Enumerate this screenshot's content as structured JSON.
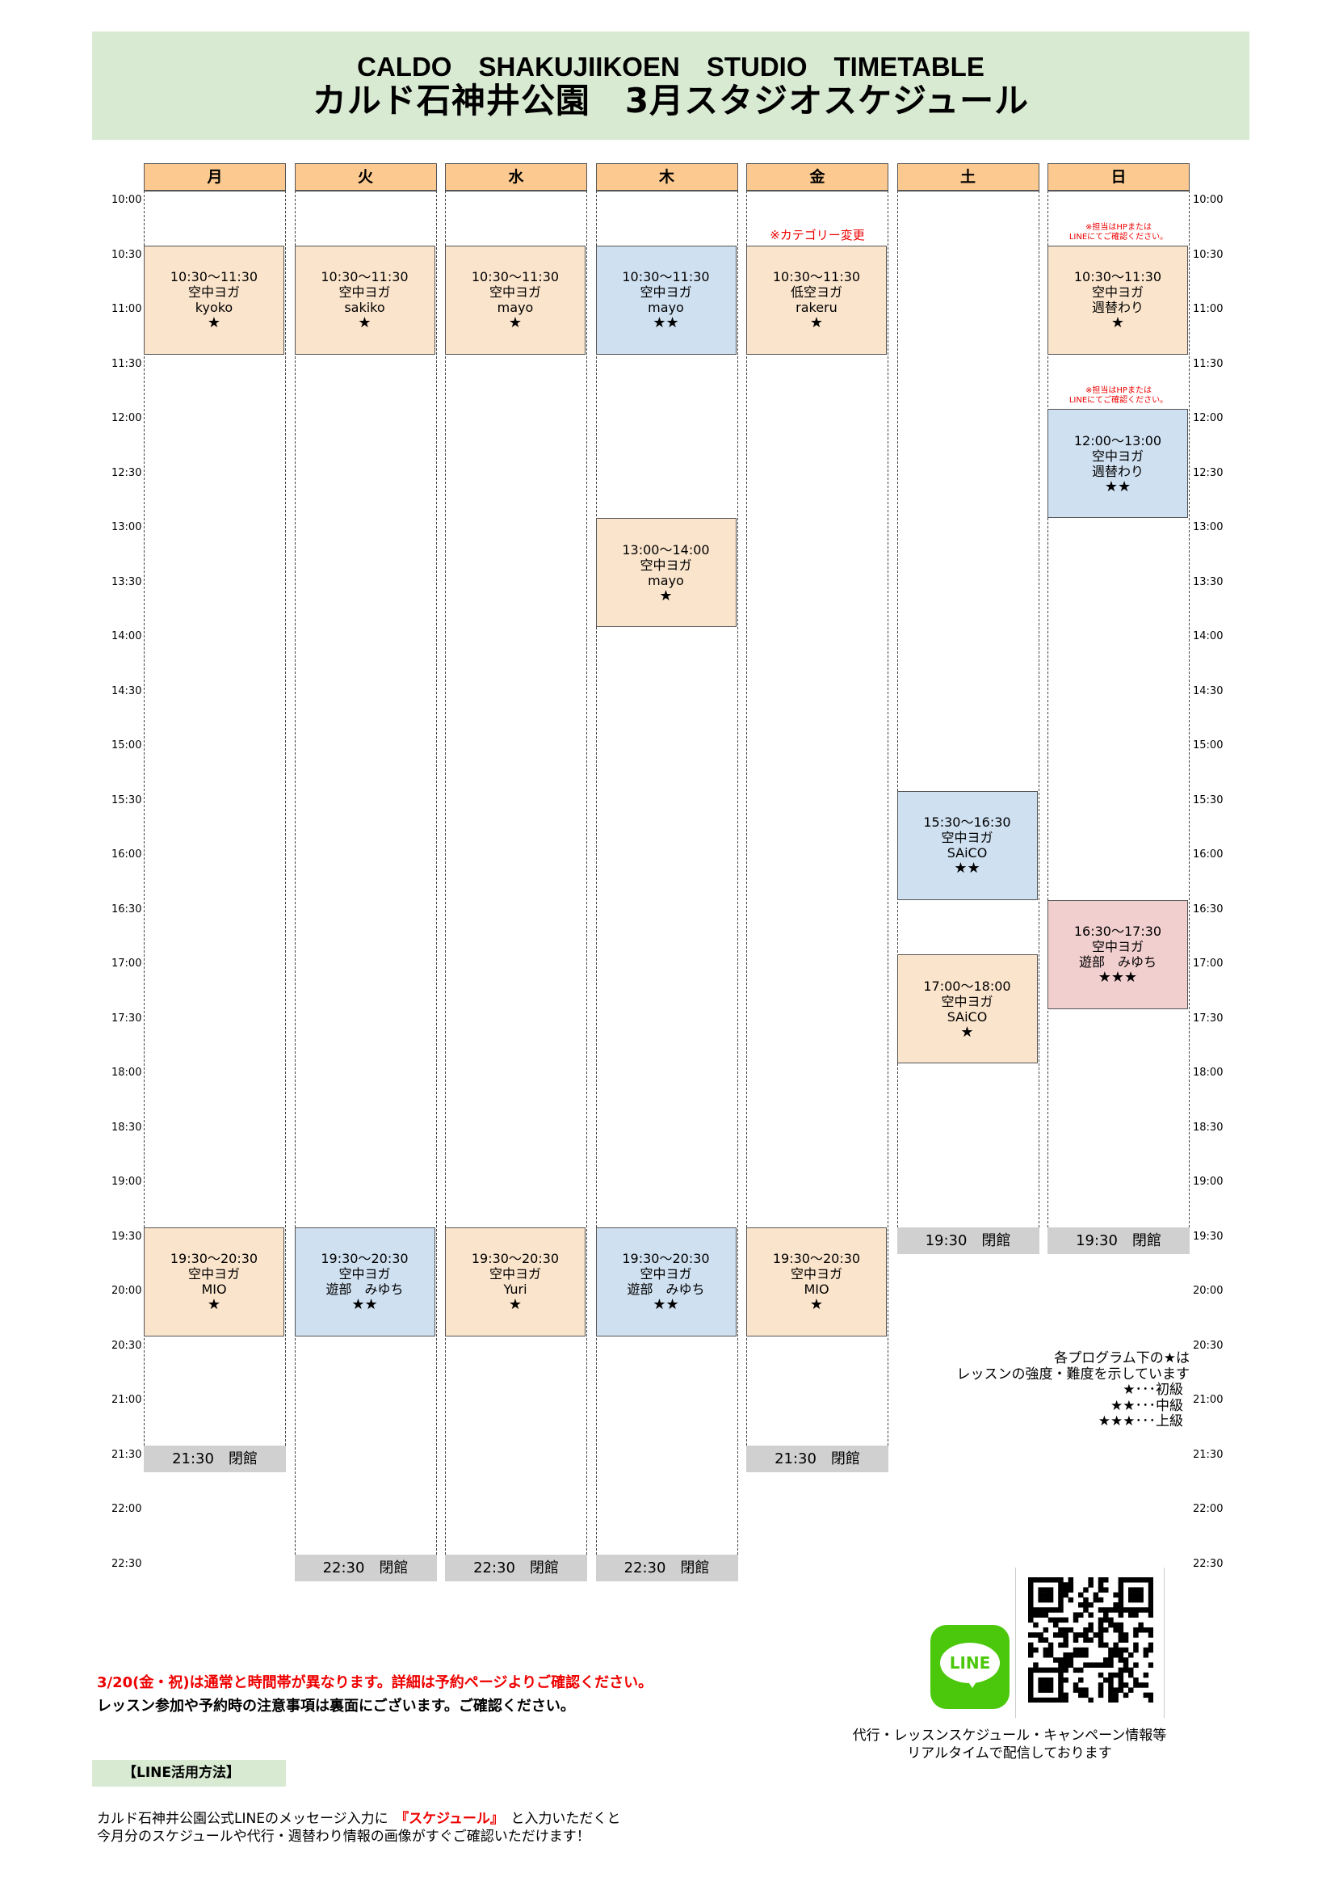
{
  "header": {
    "title_en": "CALDO　SHAKUJIIKOEN　STUDIO　TIMETABLE",
    "title_jp": "カルド石神井公園　3月スタジオスケジュール"
  },
  "days": [
    "月",
    "火",
    "水",
    "木",
    "金",
    "土",
    "日"
  ],
  "times": [
    "10:00",
    "10:30",
    "11:00",
    "11:30",
    "12:00",
    "12:30",
    "13:00",
    "13:30",
    "14:00",
    "14:30",
    "15:00",
    "15:30",
    "16:00",
    "16:30",
    "17:00",
    "17:30",
    "18:00",
    "18:30",
    "19:00",
    "19:30",
    "20:00",
    "20:30",
    "21:00",
    "21:30",
    "22:00",
    "22:30"
  ],
  "colors": {
    "orange": "#fbe4cc",
    "blue": "#cfe0f1",
    "pink": "#f2cfcf",
    "header": "#fcc990",
    "green": "#d9ead3",
    "closed": "#d0d0d0"
  },
  "events": [
    {
      "day": 0,
      "start": 1,
      "len": 2,
      "time": "10:30～11:30",
      "title": "空中ヨガ",
      "instructor": "kyoko",
      "stars": "★",
      "color": "orange"
    },
    {
      "day": 0,
      "start": 19,
      "len": 2,
      "time": "19:30～20:30",
      "title": "空中ヨガ",
      "instructor": "MIO",
      "stars": "★",
      "color": "orange"
    },
    {
      "day": 1,
      "start": 1,
      "len": 2,
      "time": "10:30～11:30",
      "title": "空中ヨガ",
      "instructor": "sakiko",
      "stars": "★",
      "color": "orange"
    },
    {
      "day": 1,
      "start": 19,
      "len": 2,
      "time": "19:30～20:30",
      "title": "空中ヨガ",
      "instructor": "遊部　みゆち",
      "stars": "★★",
      "color": "blue"
    },
    {
      "day": 2,
      "start": 1,
      "len": 2,
      "time": "10:30～11:30",
      "title": "空中ヨガ",
      "instructor": "mayo",
      "stars": "★",
      "color": "orange"
    },
    {
      "day": 2,
      "start": 19,
      "len": 2,
      "time": "19:30～20:30",
      "title": "空中ヨガ",
      "instructor": "Yuri",
      "stars": "★",
      "color": "orange"
    },
    {
      "day": 3,
      "start": 1,
      "len": 2,
      "time": "10:30～11:30",
      "title": "空中ヨガ",
      "instructor": "mayo",
      "stars": "★★",
      "color": "blue"
    },
    {
      "day": 3,
      "start": 6,
      "len": 2,
      "time": "13:00～14:00",
      "title": "空中ヨガ",
      "instructor": "mayo",
      "stars": "★",
      "color": "orange"
    },
    {
      "day": 3,
      "start": 19,
      "len": 2,
      "time": "19:30～20:30",
      "title": "空中ヨガ",
      "instructor": "遊部　みゆち",
      "stars": "★★",
      "color": "blue"
    },
    {
      "day": 4,
      "start": 1,
      "len": 2,
      "time": "10:30～11:30",
      "title": "低空ヨガ",
      "instructor": "rakeru",
      "stars": "★",
      "color": "orange"
    },
    {
      "day": 4,
      "start": 19,
      "len": 2,
      "time": "19:30～20:30",
      "title": "空中ヨガ",
      "instructor": "MIO",
      "stars": "★",
      "color": "orange"
    },
    {
      "day": 5,
      "start": 11,
      "len": 2,
      "time": "15:30～16:30",
      "title": "空中ヨガ",
      "instructor": "SAiCO",
      "stars": "★★",
      "color": "blue"
    },
    {
      "day": 5,
      "start": 14,
      "len": 2,
      "time": "17:00～18:00",
      "title": "空中ヨガ",
      "instructor": "SAiCO",
      "stars": "★",
      "color": "orange"
    },
    {
      "day": 6,
      "start": 1,
      "len": 2,
      "time": "10:30～11:30",
      "title": "空中ヨガ",
      "instructor": "週替わり",
      "stars": "★",
      "color": "orange"
    },
    {
      "day": 6,
      "start": 4,
      "len": 2,
      "time": "12:00～13:00",
      "title": "空中ヨガ",
      "instructor": "週替わり",
      "stars": "★★",
      "color": "blue"
    },
    {
      "day": 6,
      "start": 13,
      "len": 2,
      "time": "16:30～17:30",
      "title": "空中ヨガ",
      "instructor": "遊部　みゆち",
      "stars": "★★★",
      "color": "pink"
    }
  ],
  "closings": [
    {
      "day": 0,
      "slot": 23,
      "label": "21:30　閉館"
    },
    {
      "day": 1,
      "slot": 25,
      "label": "22:30　閉館"
    },
    {
      "day": 2,
      "slot": 25,
      "label": "22:30　閉館"
    },
    {
      "day": 3,
      "slot": 25,
      "label": "22:30　閉館"
    },
    {
      "day": 4,
      "slot": 23,
      "label": "21:30　閉館"
    },
    {
      "day": 5,
      "slot": 19,
      "label": "19:30　閉館"
    },
    {
      "day": 6,
      "slot": 19,
      "label": "19:30　閉館"
    }
  ],
  "notes": [
    {
      "day": 4,
      "slot": 1,
      "text": "※カテゴリー変更",
      "small": false
    },
    {
      "day": 6,
      "slot": 1,
      "text": "※担当はHPまたは\nLINEにてご確認ください。",
      "small": true
    },
    {
      "day": 6,
      "slot": 4,
      "text": "※担当はHPまたは\nLINEにてご確認ください。",
      "small": true
    }
  ],
  "legend": {
    "line1": "各プログラム下の★は",
    "line2": "レッスンの強度・難度を示しています",
    "beginner": "★･･･初級",
    "intermediate": "★★･･･中級",
    "advanced": "★★★･･･上級"
  },
  "footer": {
    "notice_red": "3/20(金・祝)は通常と時間帯が異なります。詳細は予約ページよりご確認ください。",
    "notice": "レッスン参加や予約時の注意事項は裏面にございます。ご確認ください。",
    "line_heading": "【LINE活用方法】",
    "line_text1_a": "カルド石神井公園公式LINEのメッセージ入力に　",
    "line_text1_keyword": "『スケジュール』",
    "line_text1_b": "　と入力いただくと",
    "line_text2": "今月分のスケジュールや代行・週替わり情報の画像がすぐご確認いただけます！",
    "line_logo": "LINE",
    "qr_caption1": "代行・レッスンスケジュール・キャンペーン情報等",
    "qr_caption2": "リアルタイムで配信しております"
  }
}
